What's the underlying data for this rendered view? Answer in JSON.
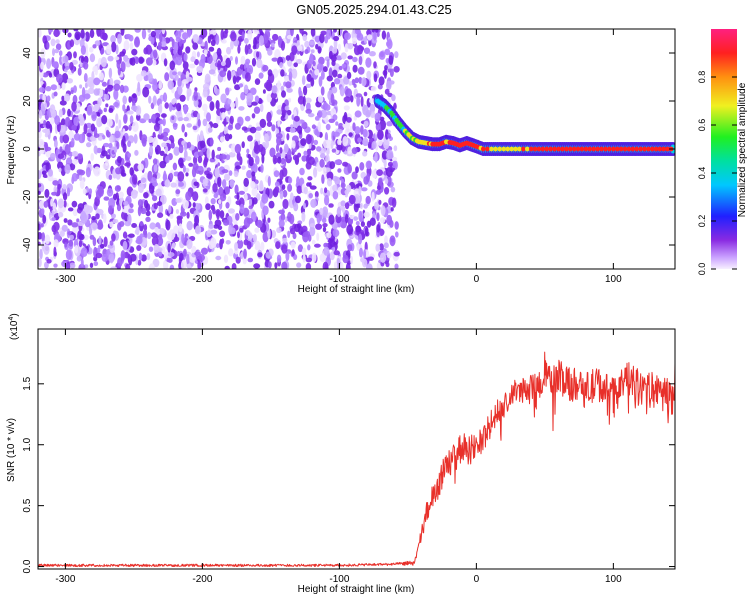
{
  "title": "GN05.2025.294.01.43.C25",
  "chart_data": [
    {
      "type": "heatmap",
      "xlabel": "Height of straight line (km)",
      "ylabel": "Frequency (Hz)",
      "xlim": [
        -320,
        145
      ],
      "ylim": [
        -50,
        50
      ],
      "xticks": [
        -300,
        -200,
        -100,
        0,
        100
      ],
      "yticks": [
        -40,
        -20,
        0,
        20,
        40
      ],
      "noise_region_x": [
        -320,
        -58
      ],
      "signal_trace": {
        "x": [
          -72,
          -67,
          -62,
          -57,
          -52,
          -47,
          -42,
          -37,
          -32,
          -27,
          -22,
          -17,
          -12,
          -7,
          -2,
          5,
          20,
          40,
          60,
          80,
          100,
          120,
          145
        ],
        "y": [
          20,
          18,
          15,
          11,
          7.5,
          4.5,
          3,
          2.5,
          2,
          2,
          3,
          2.5,
          1.5,
          2.5,
          1.5,
          0,
          0,
          0,
          0,
          0,
          0,
          0,
          0
        ],
        "peak_amplitude": [
          0.35,
          0.45,
          0.5,
          0.55,
          0.6,
          0.7,
          0.8,
          0.85,
          0.9,
          0.95,
          0.9,
          0.95,
          1,
          0.95,
          1,
          0.9,
          0.85,
          0.95,
          1,
          0.95,
          1,
          0.95,
          1
        ]
      },
      "colorbar": {
        "label": "Normalized spectral amplitude",
        "ticks": [
          "0.0",
          "0.2",
          "0.4",
          "0.6",
          "0.8"
        ],
        "range": [
          0,
          1
        ]
      }
    },
    {
      "type": "line",
      "xlabel": "Height of straight line (km)",
      "ylabel": "SNR (10 * v/v)",
      "scale_note": "(x10",
      "scale_exp": "4",
      "xlim": [
        -320,
        145
      ],
      "ylim": [
        -0.02,
        1.95
      ],
      "xticks": [
        -300,
        -200,
        -100,
        0,
        100
      ],
      "yticks": [
        "0.0",
        "0.5",
        "1.0",
        "1.5"
      ],
      "series": [
        {
          "color": "#e8302a",
          "x": [
            -320,
            -200,
            -100,
            -60,
            -45,
            -40,
            -35,
            -30,
            -25,
            -20,
            -15,
            -10,
            -5,
            0,
            5,
            10,
            15,
            20,
            25,
            30,
            40,
            50,
            60,
            70,
            80,
            90,
            100,
            110,
            120,
            130,
            140,
            145
          ],
          "values": [
            0.01,
            0.01,
            0.01,
            0.02,
            0.03,
            0.25,
            0.5,
            0.6,
            0.75,
            0.85,
            0.9,
            1.0,
            0.95,
            1.0,
            1.05,
            1.15,
            1.25,
            1.3,
            1.4,
            1.45,
            1.45,
            1.55,
            1.55,
            1.5,
            1.45,
            1.5,
            1.4,
            1.55,
            1.45,
            1.45,
            1.4,
            1.4
          ],
          "noise_amplitude": [
            0.01,
            0.01,
            0.01,
            0.01,
            0.02,
            0.08,
            0.1,
            0.12,
            0.12,
            0.12,
            0.12,
            0.12,
            0.12,
            0.12,
            0.12,
            0.12,
            0.12,
            0.1,
            0.1,
            0.1,
            0.12,
            0.14,
            0.15,
            0.15,
            0.15,
            0.15,
            0.15,
            0.15,
            0.15,
            0.15,
            0.15,
            0.15
          ]
        }
      ]
    }
  ]
}
